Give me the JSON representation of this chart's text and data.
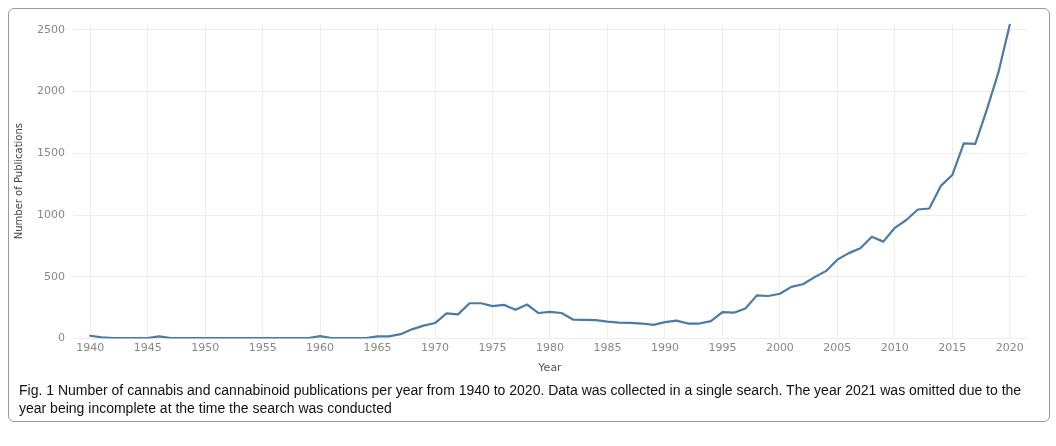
{
  "chart_data": {
    "type": "line",
    "xlabel": "Year",
    "ylabel": "Number of Publications",
    "annotations": [
      "Fig. 1  Number of cannabis and cannabinoid publications per year from 1940 to 2020. Data was collected in a single search. The year 2021 was omitted due to the year being incomplete at the time the search was conducted"
    ],
    "x": [
      1940,
      1941,
      1942,
      1943,
      1944,
      1945,
      1946,
      1947,
      1948,
      1949,
      1950,
      1951,
      1952,
      1953,
      1954,
      1955,
      1956,
      1957,
      1958,
      1959,
      1960,
      1961,
      1962,
      1963,
      1964,
      1965,
      1966,
      1967,
      1968,
      1969,
      1970,
      1971,
      1972,
      1973,
      1974,
      1975,
      1976,
      1977,
      1978,
      1979,
      1980,
      1981,
      1982,
      1983,
      1984,
      1985,
      1986,
      1987,
      1988,
      1989,
      1990,
      1991,
      1992,
      1993,
      1994,
      1995,
      1996,
      1997,
      1998,
      1999,
      2000,
      2001,
      2002,
      2003,
      2004,
      2005,
      2006,
      2007,
      2008,
      2009,
      2010,
      2011,
      2012,
      2013,
      2014,
      2015,
      2016,
      2017,
      2018,
      2019,
      2020
    ],
    "series": [
      {
        "color": "#4e79a7",
        "values": [
          23,
          10,
          5,
          5,
          5,
          5,
          18,
          5,
          5,
          5,
          5,
          5,
          5,
          5,
          5,
          5,
          5,
          5,
          5,
          5,
          20,
          5,
          5,
          5,
          5,
          18,
          18,
          36,
          75,
          105,
          126,
          204,
          196,
          286,
          286,
          263,
          273,
          233,
          276,
          207,
          217,
          207,
          154,
          151,
          149,
          138,
          130,
          127,
          122,
          111,
          133,
          146,
          122,
          122,
          141,
          215,
          210,
          244,
          350,
          345,
          363,
          419,
          440,
          496,
          546,
          639,
          692,
          732,
          825,
          785,
          897,
          960,
          1045,
          1053,
          1236,
          1324,
          1581,
          1576,
          1851,
          2151,
          2540
        ]
      }
    ],
    "xlim": [
      1938.5,
      2021.5
    ],
    "ylim": [
      0,
      2550
    ],
    "xticks": [
      1940,
      1945,
      1950,
      1955,
      1960,
      1965,
      1970,
      1975,
      1980,
      1985,
      1990,
      1995,
      2000,
      2005,
      2010,
      2015,
      2020
    ],
    "yticks": [
      0,
      500,
      1000,
      1500,
      2000,
      2500
    ],
    "grid": true,
    "legend": false,
    "marker": "none",
    "line_style": "solid"
  }
}
